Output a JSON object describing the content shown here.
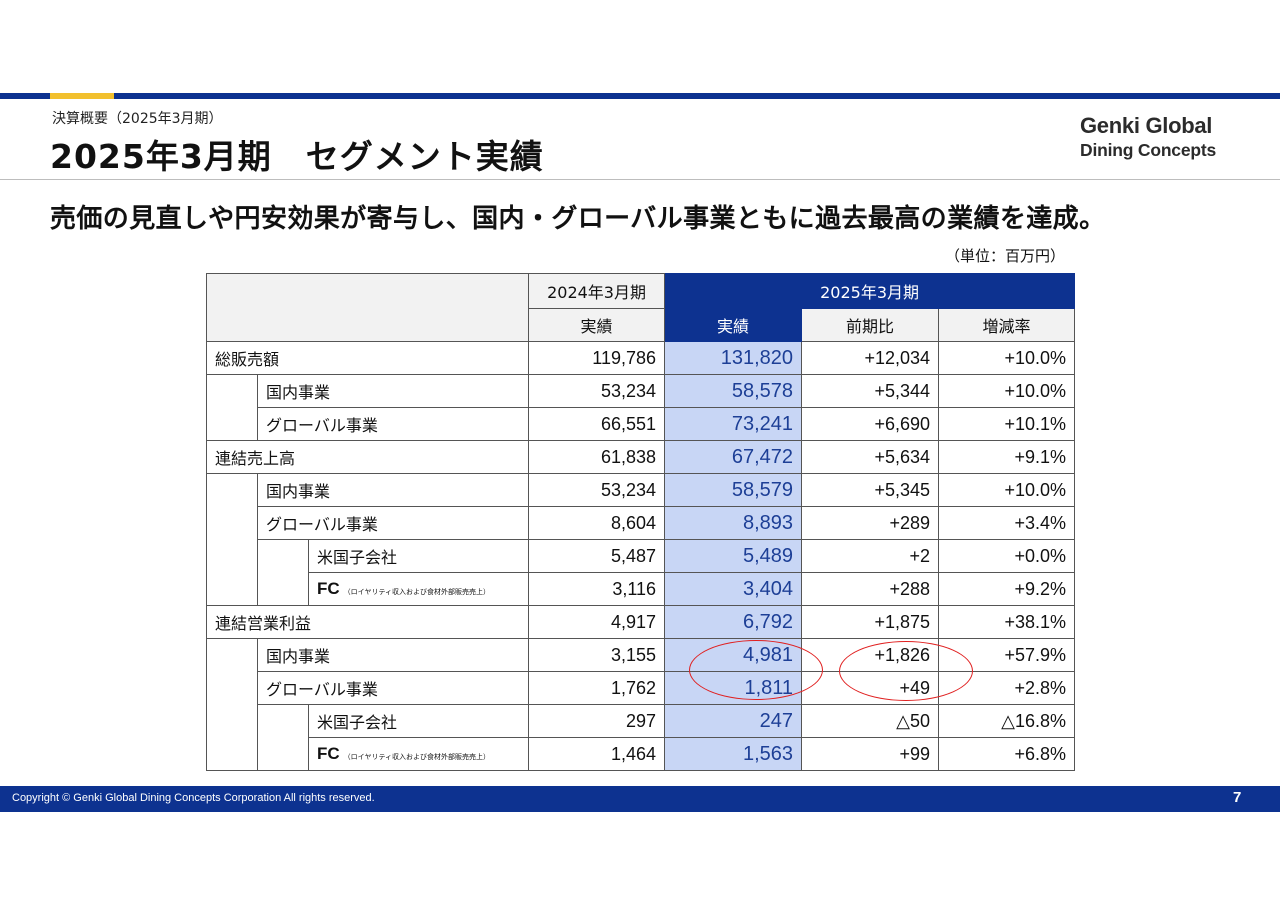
{
  "header": {
    "breadcrumb": "決算概要（2025年3月期）",
    "title": "2025年3月期　セグメント実績",
    "logo_line1": "Genki Global",
    "logo_line2": "Dining Concepts"
  },
  "headline": "売価の見直しや円安効果が寄与し、国内・グローバル事業ともに過去最高の業績を達成。",
  "unit": "（単位：百万円）",
  "table": {
    "col_prev_period": "2024年3月期",
    "col_curr_period": "2025年3月期",
    "col_actual_prev": "実績",
    "col_actual_curr": "実績",
    "col_yoy": "前期比",
    "col_rate": "増減率",
    "rows": [
      {
        "label": "総販売額",
        "note": "",
        "prev": "119,786",
        "curr": "131,820",
        "yoy": "+12,034",
        "rate": "+10.0%"
      },
      {
        "label": "国内事業",
        "note": "",
        "prev": "53,234",
        "curr": "58,578",
        "yoy": "+5,344",
        "rate": "+10.0%"
      },
      {
        "label": "グローバル事業",
        "note": "",
        "prev": "66,551",
        "curr": "73,241",
        "yoy": "+6,690",
        "rate": "+10.1%"
      },
      {
        "label": "連結売上高",
        "note": "",
        "prev": "61,838",
        "curr": "67,472",
        "yoy": "+5,634",
        "rate": "+9.1%"
      },
      {
        "label": "国内事業",
        "note": "",
        "prev": "53,234",
        "curr": "58,579",
        "yoy": "+5,345",
        "rate": "+10.0%"
      },
      {
        "label": "グローバル事業",
        "note": "",
        "prev": "8,604",
        "curr": "8,893",
        "yoy": "+289",
        "rate": "+3.4%"
      },
      {
        "label": "米国子会社",
        "note": "",
        "prev": "5,487",
        "curr": "5,489",
        "yoy": "+2",
        "rate": "+0.0%"
      },
      {
        "label": "FC",
        "note": "（ロイヤリティ収入および食材外部販売売上）",
        "prev": "3,116",
        "curr": "3,404",
        "yoy": "+288",
        "rate": "+9.2%"
      },
      {
        "label": "連結営業利益",
        "note": "",
        "prev": "4,917",
        "curr": "6,792",
        "yoy": "+1,875",
        "rate": "+38.1%"
      },
      {
        "label": "国内事業",
        "note": "",
        "prev": "3,155",
        "curr": "4,981",
        "yoy": "+1,826",
        "rate": "+57.9%"
      },
      {
        "label": "グローバル事業",
        "note": "",
        "prev": "1,762",
        "curr": "1,811",
        "yoy": "+49",
        "rate": "+2.8%"
      },
      {
        "label": "米国子会社",
        "note": "",
        "prev": "297",
        "curr": "247",
        "yoy": "△50",
        "rate": "△16.8%"
      },
      {
        "label": "FC",
        "note": "（ロイヤリティ収入および食材外部販売売上）",
        "prev": "1,464",
        "curr": "1,563",
        "yoy": "+99",
        "rate": "+6.8%"
      }
    ]
  },
  "footer": {
    "copyright": "Copyright © Genki Global Dining Concepts Corporation All rights reserved.",
    "page_number": "7"
  },
  "colors": {
    "brand_blue": "#0d3290",
    "accent_yellow": "#f2c02e",
    "highlight_column": "#c8d6f5",
    "circle_red": "#e02020"
  }
}
